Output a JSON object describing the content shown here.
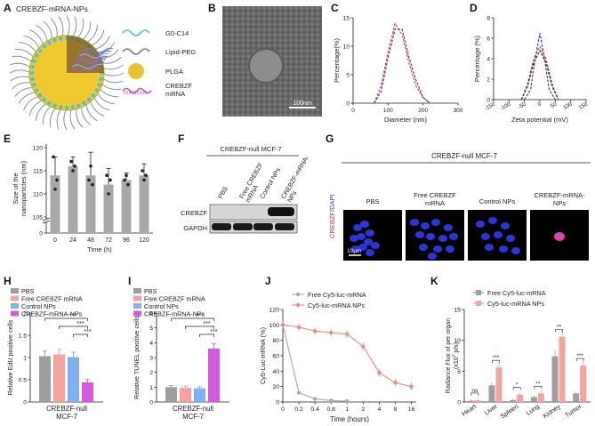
{
  "panels": {
    "A": {
      "letter": "A",
      "title": "CREBZF-mRNA-NPs",
      "legend": [
        {
          "label": "G0-C14",
          "color": "#5bc8e8",
          "icon": "wavy-line-icon"
        },
        {
          "label": "Lipid-PEG",
          "color": "#7d8b8b",
          "icon": "wavy-line-icon"
        },
        {
          "label": "PLGA",
          "color": "#e8c430",
          "icon": "sphere-icon"
        },
        {
          "label": "CREBZF\nmRNA",
          "color": "#c04fc0",
          "icon": "mrna-strand-icon"
        }
      ]
    },
    "B": {
      "letter": "B",
      "scalebar": "100nm"
    },
    "C": {
      "letter": "C",
      "ylabel": "Percentage(%)",
      "xlabel": "Diameter (nm)",
      "xticks": [
        "0",
        "100",
        "200",
        "300"
      ],
      "yticks": [
        "0",
        "5",
        "10",
        "15"
      ]
    },
    "D": {
      "letter": "D",
      "ylabel": "Percentage (%)",
      "xlabel": "Zeta potential (mV)",
      "xticks": [
        "-150",
        "-100",
        "-50",
        "0",
        "50",
        "100",
        "150"
      ],
      "yticks": [
        "0",
        "2",
        "4",
        "6",
        "8"
      ]
    },
    "E": {
      "letter": "E",
      "ylabel": "Size of the\nnanoparticles (nm)",
      "xlabel": "Time (h)"
    },
    "F": {
      "letter": "F",
      "header": "CREBZF-null MCF-7",
      "lanes": [
        "PBS",
        "Free CREBZF mRNA",
        "Control NPs",
        "CREBZF-mRNA-NPs"
      ],
      "rows": [
        "CREBZF",
        "GAPDH"
      ]
    },
    "G": {
      "letter": "G",
      "header": "CREBZF-null MCF-7",
      "columns": [
        "PBS",
        "Free CREBZF mRNA",
        "Control NPs",
        "CREBZF-mRNA-NPs"
      ],
      "ylabel_red": "CREBZF",
      "ylabel_blue": "/DAPI",
      "scalebar": "10μm"
    },
    "H": {
      "letter": "H"
    },
    "I": {
      "letter": "I"
    },
    "J": {
      "letter": "J"
    },
    "K": {
      "letter": "K"
    }
  },
  "chart_data": [
    {
      "id": "C",
      "type": "line",
      "xlabel": "Diameter (nm)",
      "ylabel": "Percentage(%)",
      "xlim": [
        0,
        300
      ],
      "ylim": [
        0,
        15
      ],
      "series": [
        {
          "name": "red",
          "color": "#d9453b",
          "x": [
            60,
            80,
            100,
            120,
            140,
            160,
            180,
            200,
            220
          ],
          "y": [
            0,
            3,
            9,
            14,
            12,
            7,
            3,
            1,
            0
          ]
        },
        {
          "name": "blue",
          "color": "#2a3fa0",
          "x": [
            60,
            80,
            100,
            120,
            140,
            160,
            180,
            200,
            220
          ],
          "y": [
            0,
            2,
            8,
            13,
            13,
            8,
            4,
            1,
            0
          ]
        }
      ]
    },
    {
      "id": "D",
      "type": "line",
      "xlabel": "Zeta potential (mV)",
      "ylabel": "Percentage (%)",
      "xlim": [
        -150,
        150
      ],
      "ylim": [
        0,
        8
      ],
      "series": [
        {
          "name": "red",
          "color": "#d9453b",
          "x": [
            -60,
            -40,
            -20,
            0,
            20,
            40,
            60
          ],
          "y": [
            0,
            1.5,
            4,
            5.2,
            4,
            1.5,
            0
          ]
        },
        {
          "name": "blue",
          "color": "#2a3fa0",
          "x": [
            -50,
            -30,
            -15,
            0,
            15,
            30,
            50
          ],
          "y": [
            0,
            1,
            4,
            6.5,
            4,
            1,
            0
          ]
        },
        {
          "name": "black",
          "color": "#222222",
          "x": [
            -60,
            -40,
            -20,
            0,
            20,
            40,
            60
          ],
          "y": [
            0,
            1.3,
            3.6,
            4.8,
            3.6,
            1.3,
            0
          ]
        }
      ]
    },
    {
      "id": "E",
      "type": "bar",
      "xlabel": "Time (h)",
      "ylabel": "Size of the nanoparticles (nm)",
      "categories": [
        "0",
        "24",
        "48",
        "72",
        "96",
        "120"
      ],
      "values": [
        114,
        116,
        114,
        112,
        113,
        114
      ],
      "yticks": [
        "105",
        "110",
        "115",
        "120",
        "0"
      ],
      "ylim": [
        105,
        120
      ]
    },
    {
      "id": "H",
      "type": "bar",
      "xlabel": "CREBZF-null\nMCF-7",
      "ylabel": "Relative EdU positive cells",
      "legend": [
        "PBS",
        "Free CREBZF mRNA",
        "Control NPs",
        "CREBZF-mRNA-NPs"
      ],
      "colors": [
        "#9e9e9e",
        "#f4a3a0",
        "#7fb1f2",
        "#d35be0"
      ],
      "values": [
        1.03,
        1.07,
        1.01,
        0.44
      ],
      "yticks": [
        "0",
        "0.5",
        "1",
        "1.5",
        "2"
      ],
      "ylim": [
        0,
        2
      ],
      "significance": [
        "***",
        "***",
        "***"
      ]
    },
    {
      "id": "I",
      "type": "bar",
      "xlabel": "CREBZF-null\nMCF-7",
      "ylabel": "Relative TUNEL positive cells",
      "legend": [
        "PBS",
        "Free CREBZF mRNA",
        "Control NPs",
        "CREBZF-mRNA-NPs"
      ],
      "colors": [
        "#9e9e9e",
        "#f4a3a0",
        "#7fb1f2",
        "#d35be0"
      ],
      "values": [
        1.0,
        0.95,
        0.92,
        3.6
      ],
      "yticks": [
        "0",
        "1",
        "2",
        "3",
        "4",
        "5",
        "6"
      ],
      "ylim": [
        0,
        6
      ],
      "significance": [
        "***",
        "***",
        "***"
      ]
    },
    {
      "id": "J",
      "type": "line",
      "xlabel": "Time (hours)",
      "ylabel": "Cy5-Luc-mRNA (%)",
      "categories": [
        "0",
        "0.2",
        "0.4",
        "0.8",
        "1",
        "2",
        "4",
        "8",
        "16"
      ],
      "yticks": [
        "0",
        "20",
        "40",
        "60",
        "80",
        "100",
        "120"
      ],
      "ylim": [
        0,
        120
      ],
      "series": [
        {
          "name": "Free Cy5-luc-mRNA",
          "color": "#aaaaaa",
          "values": [
            100,
            12,
            4,
            2,
            1,
            null,
            null,
            null,
            null
          ]
        },
        {
          "name": "Cy5-luc-mRNA NPs",
          "color": "#f08a7e",
          "values": [
            100,
            97,
            92,
            90,
            88,
            72,
            38,
            25,
            20
          ]
        }
      ]
    },
    {
      "id": "K",
      "type": "bar",
      "xlabel": "",
      "ylabel": "Radiance Flux of per organ (x10^7 p/s)",
      "categories": [
        "Heart",
        "Liver",
        "Spleen",
        "Lung",
        "Kidney",
        "Tumor"
      ],
      "yticks": [
        "0",
        "5",
        "10",
        "15"
      ],
      "ylim": [
        0,
        15
      ],
      "series": [
        {
          "name": "Free Cy5-luc-mRNA",
          "color": "#9e9e9e",
          "values": [
            0.2,
            2.7,
            0.3,
            0.8,
            7.4,
            1.4
          ]
        },
        {
          "name": "Cy5-luc-mRNA NPs",
          "color": "#f4a3a0",
          "values": [
            0.3,
            5.6,
            1.2,
            1.4,
            10.6,
            5.9
          ]
        }
      ],
      "significance": [
        "ns",
        "***",
        "*",
        "**",
        "**",
        "***"
      ]
    }
  ]
}
